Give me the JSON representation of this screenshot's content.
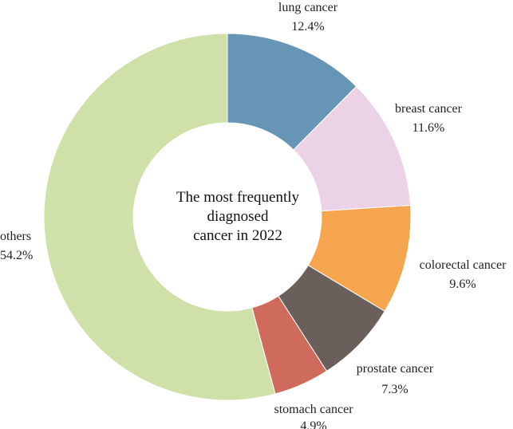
{
  "chart_data": {
    "type": "pie",
    "variant": "donut",
    "center_text": [
      "The most frequently",
      "diagnosed",
      "cancer in 2022"
    ],
    "unit": "%",
    "slices": [
      {
        "label": "lung cancer",
        "value": 12.4,
        "display": "12.4%",
        "color": "#6795b5"
      },
      {
        "label": "breast cancer",
        "value": 11.6,
        "display": "11.6%",
        "color": "#ebd2e6"
      },
      {
        "label": "colorectal cancer",
        "value": 9.6,
        "display": "9.6%",
        "color": "#f4a54e"
      },
      {
        "label": "prostate cancer",
        "value": 7.3,
        "display": "7.3%",
        "color": "#6a5f5a"
      },
      {
        "label": "stomach cancer",
        "value": 4.9,
        "display": "4.9%",
        "color": "#cf6b5d"
      },
      {
        "label": "others",
        "value": 54.2,
        "display": "54.2%",
        "color": "#cfe0a9"
      }
    ]
  }
}
